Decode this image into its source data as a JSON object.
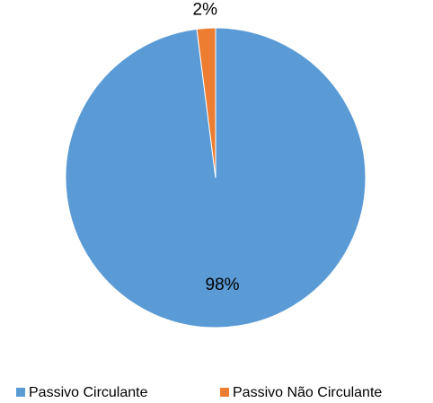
{
  "chart_data": {
    "type": "pie",
    "categories": [
      "Passivo Circulante",
      "Passivo Não Circulante"
    ],
    "values": [
      98,
      2
    ],
    "value_labels": [
      "98%",
      "2%"
    ],
    "colors": [
      "#5b9bd5",
      "#ed7d31"
    ],
    "legend": "bottom"
  }
}
